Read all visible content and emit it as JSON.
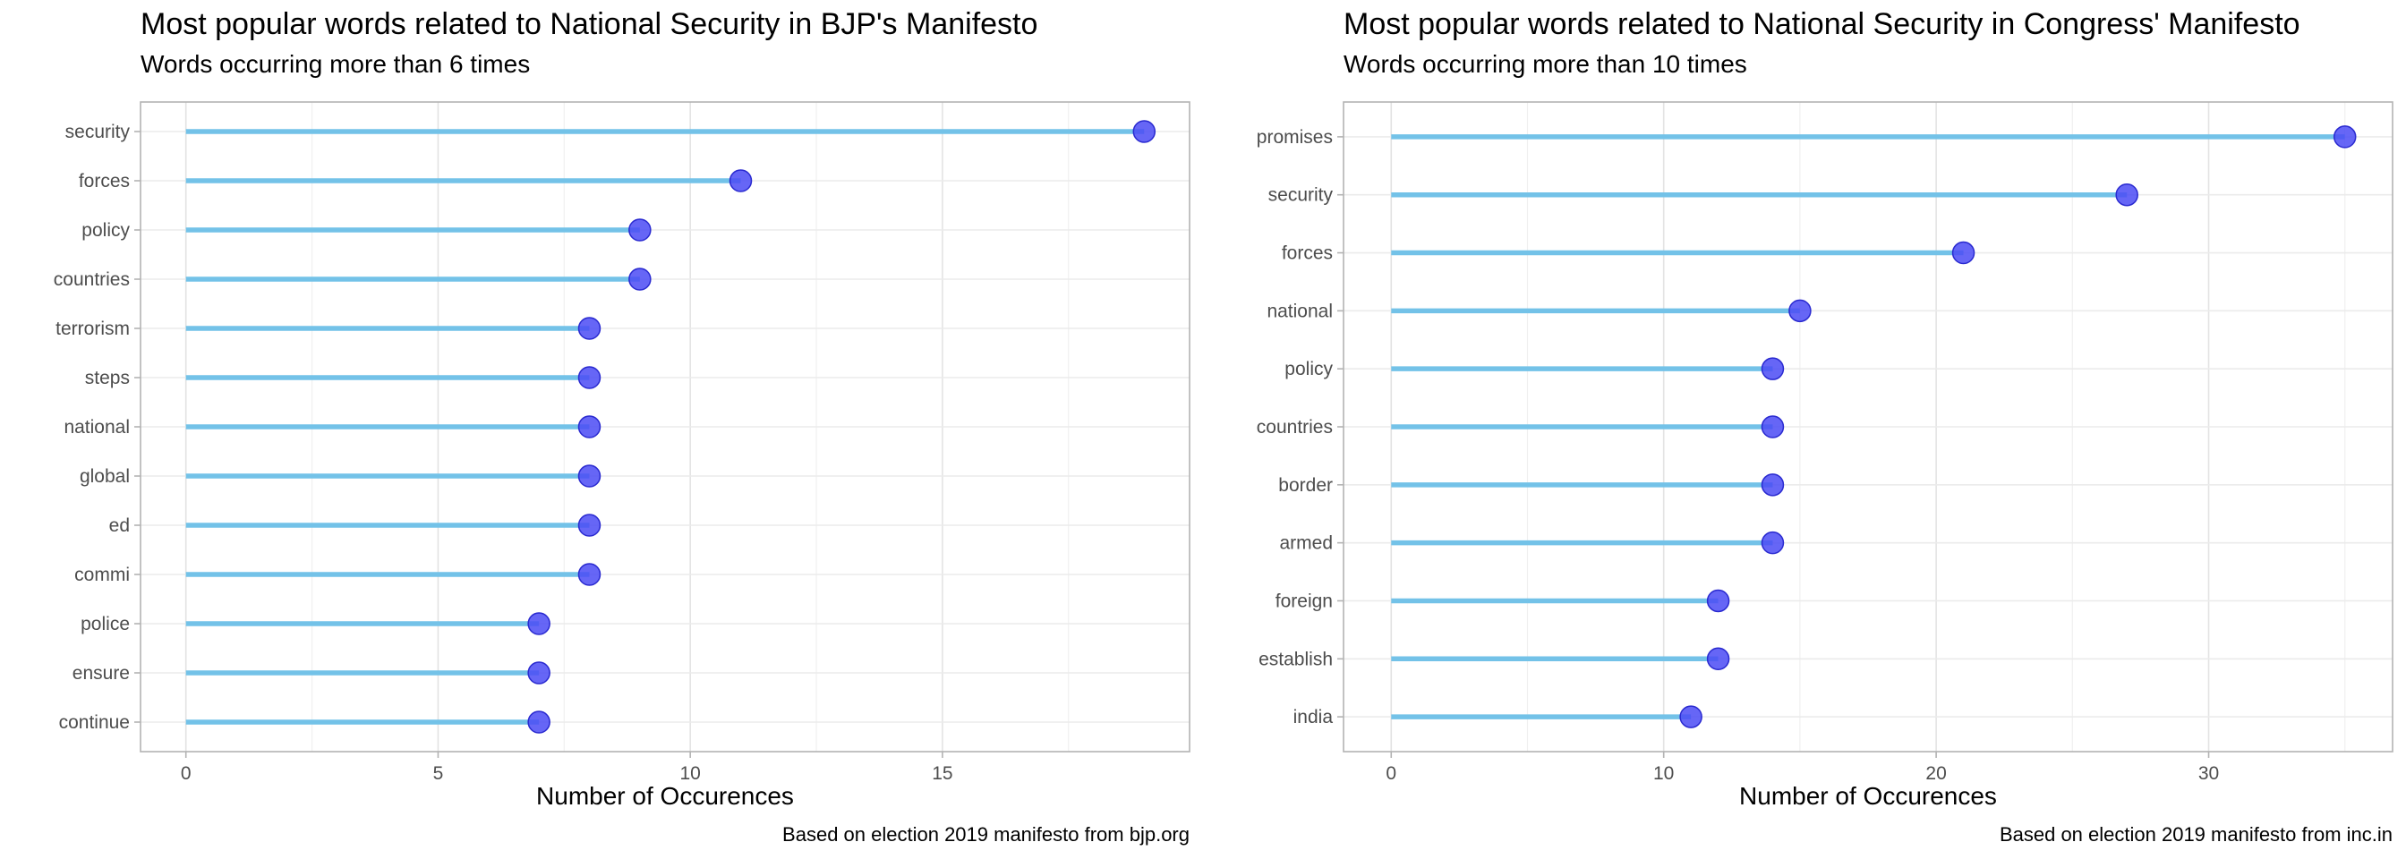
{
  "chart_data": [
    {
      "type": "lollipop",
      "title": "Most popular words related to National Security in BJP's Manifesto",
      "subtitle": "Words occurring more than 6 times",
      "xlabel": "Number of Occurences",
      "ylabel": "",
      "caption": "Based on election 2019 manifesto from bjp.org",
      "xlim": [
        -0.9,
        19.9
      ],
      "xticks": [
        0,
        5,
        10,
        15
      ],
      "minor_xticks": [
        2.5,
        7.5,
        12.5,
        17.5
      ],
      "grid": true,
      "categories": [
        "security",
        "forces",
        "policy",
        "countries",
        "terrorism",
        "steps",
        "national",
        "global",
        "ed",
        "commi",
        "police",
        "ensure",
        "continue"
      ],
      "values": [
        19,
        11,
        9,
        9,
        8,
        8,
        8,
        8,
        8,
        8,
        7,
        7,
        7
      ],
      "colors": {
        "stem": "#73c2e8",
        "point": "#4b4bf5",
        "point_border": "#2a2ad0"
      }
    },
    {
      "type": "lollipop",
      "title": "Most popular words related to National Security in Congress' Manifesto",
      "subtitle": "Words occurring more than 10 times",
      "xlabel": "Number of Occurences",
      "ylabel": "",
      "caption": "Based on election 2019 manifesto from inc.in",
      "xlim": [
        -1.75,
        36.75
      ],
      "xticks": [
        0,
        10,
        20,
        30
      ],
      "minor_xticks": [
        5,
        15,
        25,
        35
      ],
      "grid": true,
      "categories": [
        "promises",
        "security",
        "forces",
        "national",
        "policy",
        "countries",
        "border",
        "armed",
        "foreign",
        "establish",
        "india"
      ],
      "values": [
        35,
        27,
        21,
        15,
        14,
        14,
        14,
        14,
        12,
        12,
        11
      ],
      "colors": {
        "stem": "#73c2e8",
        "point": "#4b4bf5",
        "point_border": "#2a2ad0"
      }
    }
  ]
}
